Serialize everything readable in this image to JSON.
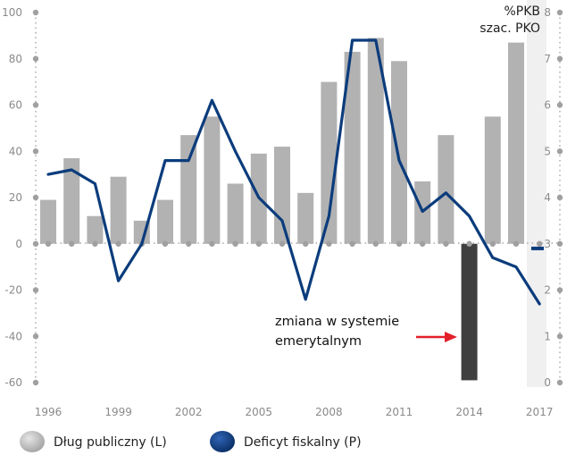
{
  "chart_data": {
    "type": "bar+line",
    "unit_label": [
      "%PKB",
      "szac. PKO"
    ],
    "x": [
      1996,
      1997,
      1998,
      1999,
      2000,
      2001,
      2002,
      2003,
      2004,
      2005,
      2006,
      2007,
      2008,
      2009,
      2010,
      2011,
      2012,
      2013,
      2014,
      2015,
      2016,
      2017
    ],
    "x_tick_labels": [
      "1996",
      "1999",
      "2002",
      "2005",
      "2008",
      "2011",
      "2014",
      "2017"
    ],
    "y_left": {
      "ticks": [
        100,
        80,
        60,
        40,
        20,
        0,
        -20,
        -40,
        -60
      ],
      "range": [
        -60,
        100
      ]
    },
    "y_right": {
      "ticks": [
        8,
        7,
        6,
        5,
        4,
        3,
        2,
        1,
        0
      ],
      "range": [
        0,
        8
      ]
    },
    "estimate_from": 2017,
    "series": [
      {
        "name": "Dług publiczny (L)",
        "kind": "bar",
        "axis": "left",
        "color": "#b2b2b2",
        "values": [
          19,
          37,
          12,
          29,
          10,
          19,
          47,
          55,
          26,
          39,
          42,
          22,
          70,
          83,
          89,
          79,
          27,
          47,
          -59,
          55,
          87,
          0
        ]
      },
      {
        "name": "Deficyt fiskalny (P)",
        "kind": "line",
        "axis": "right",
        "color": "#0b3c7c",
        "values": [
          4.5,
          4.6,
          4.3,
          2.2,
          3.0,
          4.8,
          4.8,
          6.1,
          5.0,
          4.0,
          3.5,
          1.8,
          3.6,
          7.4,
          7.4,
          4.8,
          3.7,
          4.1,
          3.6,
          2.7,
          2.5,
          1.7
        ],
        "estimate_point": 2.9
      }
    ],
    "annotation": {
      "text": [
        "zmiana w systemie",
        "emerytalnym"
      ],
      "target_year": 2014
    },
    "legend": {
      "placement": "bottom-left"
    },
    "grid": false
  }
}
